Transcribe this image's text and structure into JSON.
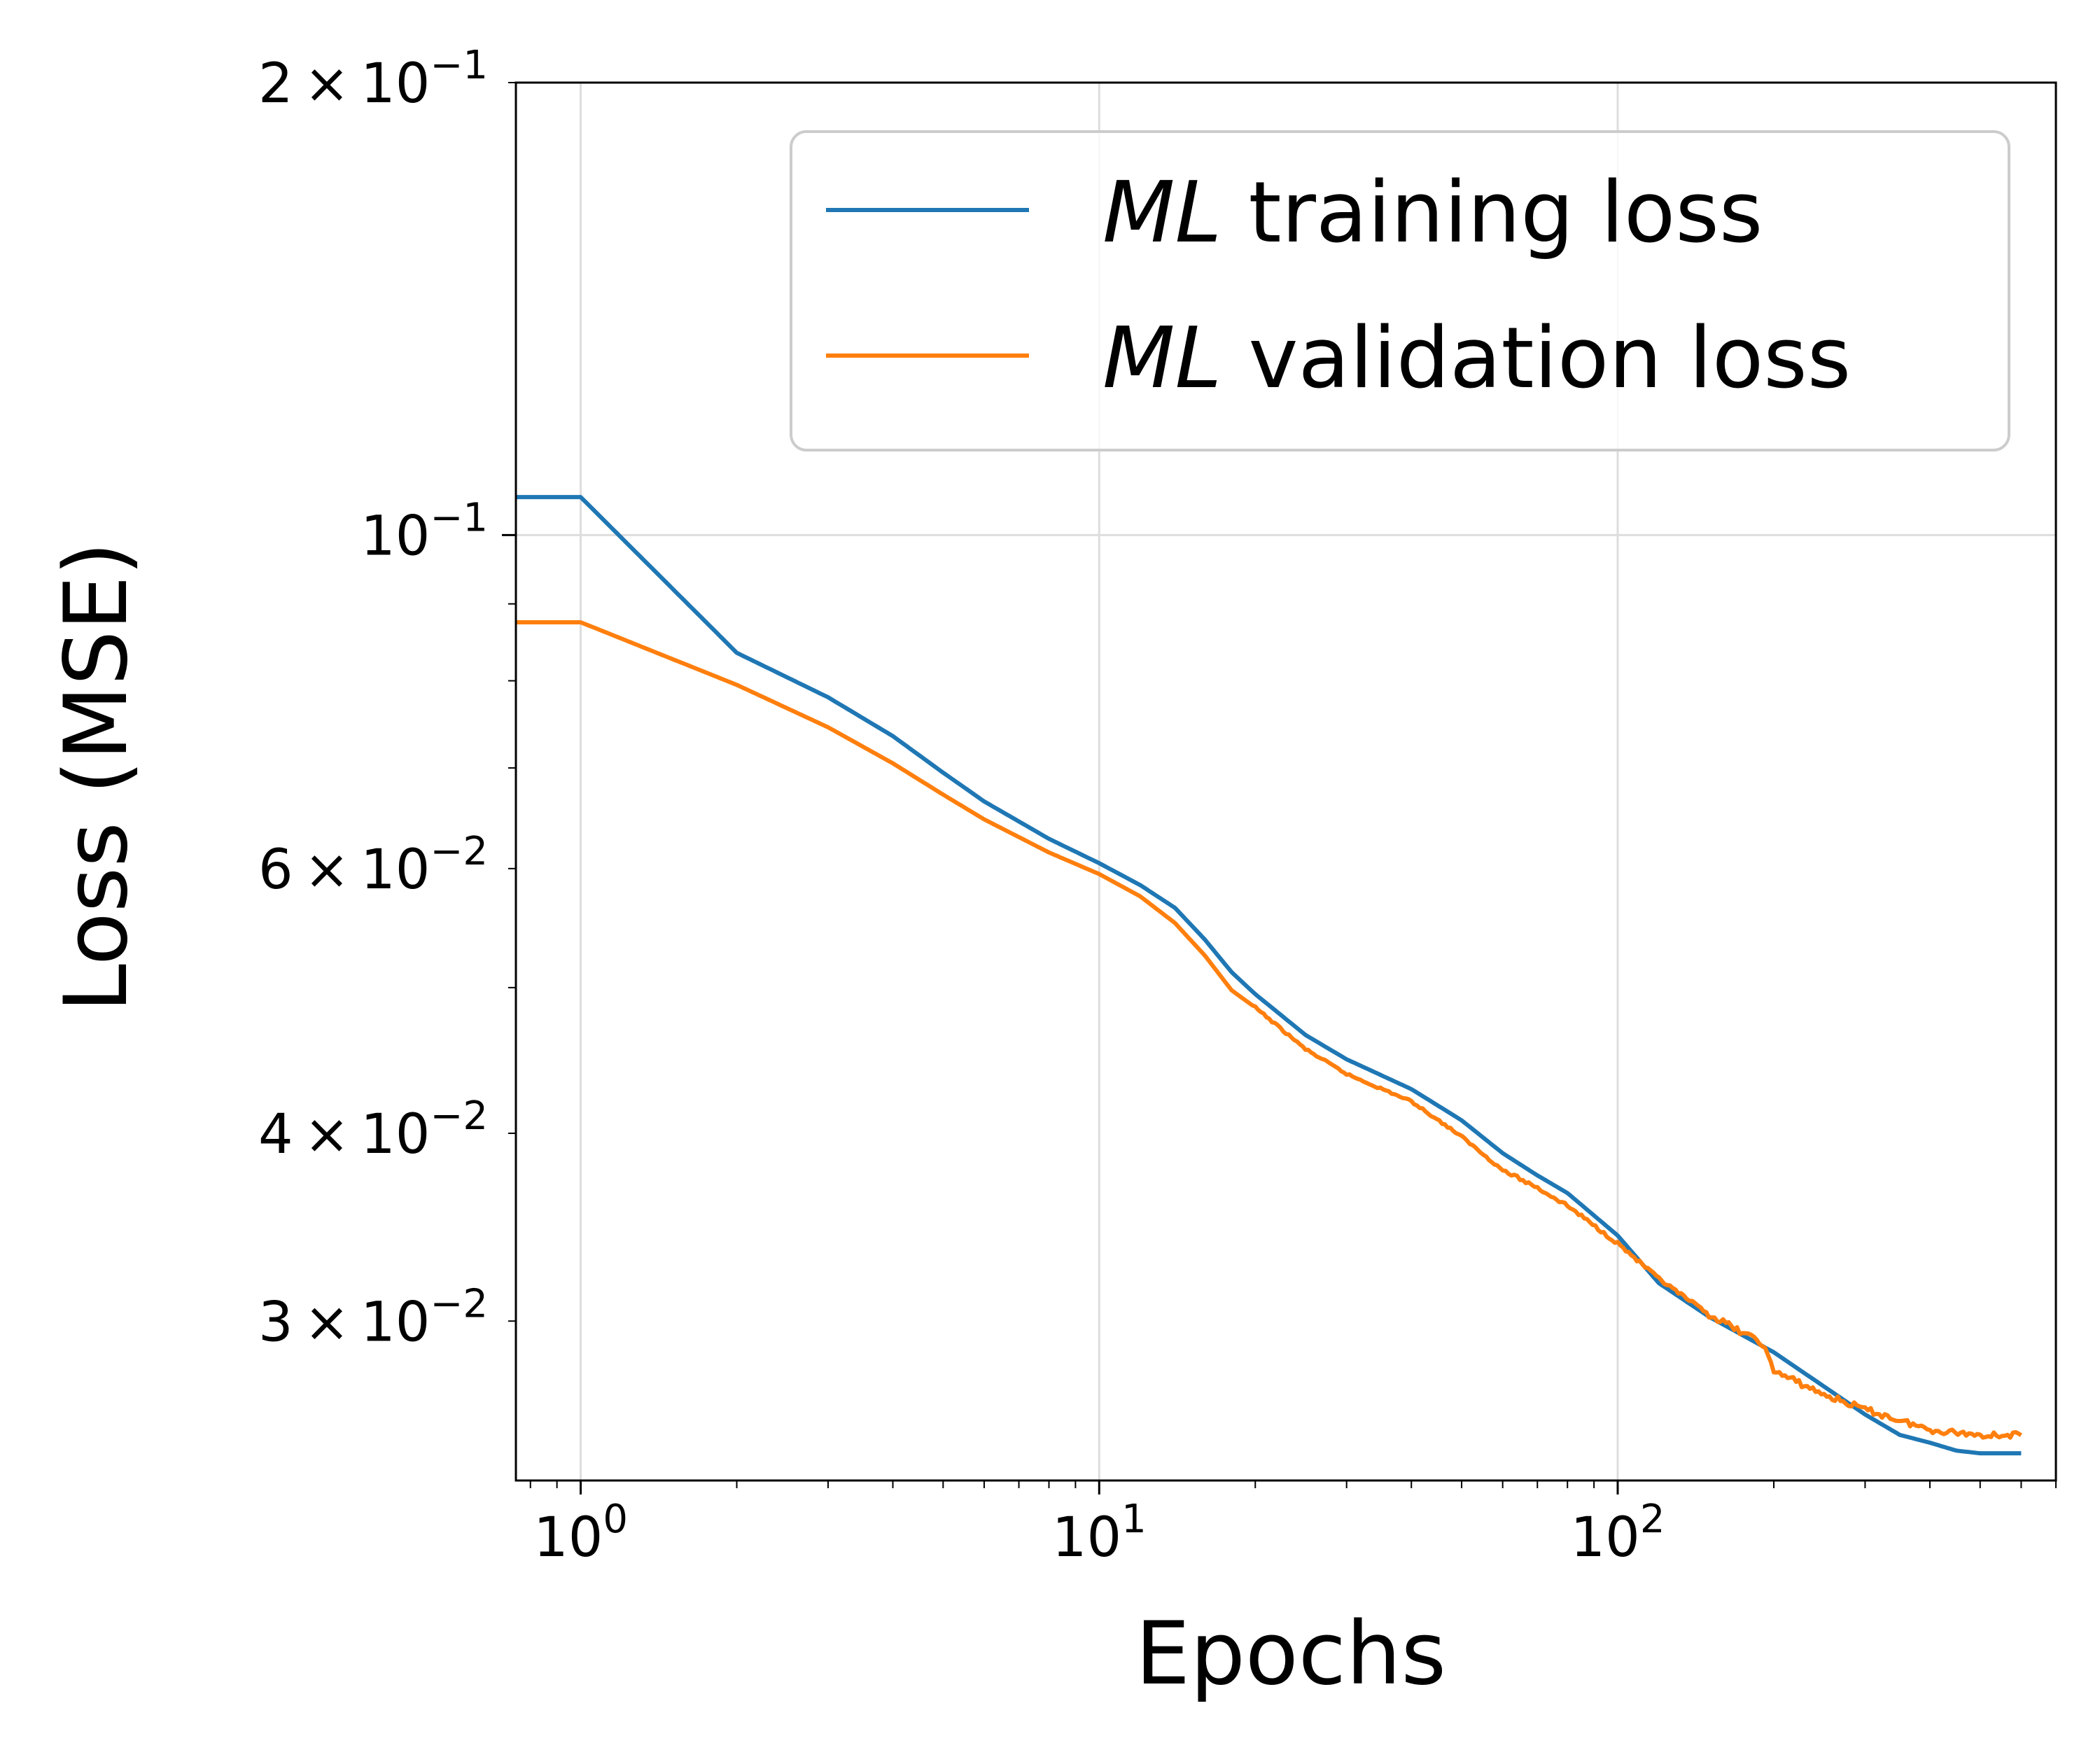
{
  "chart_data": {
    "type": "line",
    "xlabel": "Epochs",
    "ylabel": "Loss (MSE)",
    "x_scale": "log",
    "y_scale": "log",
    "xlim": [
      0.75,
      700
    ],
    "ylim": [
      0.0235,
      0.2
    ],
    "grid": true,
    "legend_position": "top-right",
    "x_ticks": [
      {
        "value": 1,
        "base": "10",
        "exp": "0"
      },
      {
        "value": 10,
        "base": "10",
        "exp": "1"
      },
      {
        "value": 100,
        "base": "10",
        "exp": "2"
      }
    ],
    "y_ticks": [
      {
        "value": 0.2,
        "mant": "2",
        "base": "10",
        "exp": "−1"
      },
      {
        "value": 0.1,
        "mant": "",
        "base": "10",
        "exp": "−1"
      },
      {
        "value": 0.06,
        "mant": "6",
        "base": "10",
        "exp": "−2"
      },
      {
        "value": 0.04,
        "mant": "4",
        "base": "10",
        "exp": "−2"
      },
      {
        "value": 0.03,
        "mant": "3",
        "base": "10",
        "exp": "−2"
      }
    ],
    "series": [
      {
        "name_italic": "ML",
        "name_rest": " training loss",
        "color": "#1f77b4",
        "points": [
          [
            0.75,
            0.106
          ],
          [
            1,
            0.106
          ],
          [
            2,
            0.0835
          ],
          [
            3,
            0.078
          ],
          [
            4,
            0.0735
          ],
          [
            5,
            0.0695
          ],
          [
            6,
            0.0665
          ],
          [
            8,
            0.0628
          ],
          [
            10,
            0.0605
          ],
          [
            12,
            0.0585
          ],
          [
            14,
            0.0565
          ],
          [
            16,
            0.0538
          ],
          [
            18,
            0.0512
          ],
          [
            20,
            0.0495
          ],
          [
            25,
            0.0465
          ],
          [
            30,
            0.0448
          ],
          [
            40,
            0.0428
          ],
          [
            50,
            0.0408
          ],
          [
            60,
            0.0388
          ],
          [
            70,
            0.0375
          ],
          [
            80,
            0.0365
          ],
          [
            100,
            0.0342
          ],
          [
            120,
            0.0318
          ],
          [
            150,
            0.0302
          ],
          [
            200,
            0.0286
          ],
          [
            300,
            0.026
          ],
          [
            350,
            0.0252
          ],
          [
            400,
            0.0249
          ],
          [
            450,
            0.0246
          ],
          [
            500,
            0.0245
          ],
          [
            600,
            0.0245
          ]
        ]
      },
      {
        "name_italic": "ML",
        "name_rest": " validation loss",
        "color": "#ff7f0e",
        "points": [
          [
            0.75,
            0.0875
          ],
          [
            1,
            0.0875
          ],
          [
            2,
            0.0795
          ],
          [
            3,
            0.0745
          ],
          [
            4,
            0.0705
          ],
          [
            5,
            0.0672
          ],
          [
            6,
            0.0647
          ],
          [
            8,
            0.0615
          ],
          [
            10,
            0.0595
          ],
          [
            12,
            0.0575
          ],
          [
            14,
            0.0552
          ],
          [
            16,
            0.0525
          ],
          [
            18,
            0.0498
          ],
          [
            20,
            0.0485
          ],
          [
            25,
            0.0455
          ],
          [
            30,
            0.0438
          ],
          [
            40,
            0.042
          ],
          [
            50,
            0.0398
          ],
          [
            60,
            0.0378
          ],
          [
            70,
            0.0368
          ],
          [
            80,
            0.0358
          ],
          [
            100,
            0.0338
          ],
          [
            120,
            0.032
          ],
          [
            150,
            0.0303
          ],
          [
            190,
            0.029
          ],
          [
            200,
            0.0278
          ],
          [
            250,
            0.0268
          ],
          [
            300,
            0.0262
          ],
          [
            400,
            0.0254
          ],
          [
            500,
            0.0252
          ],
          [
            600,
            0.0252
          ]
        ],
        "noise_from_x": 20
      }
    ]
  }
}
